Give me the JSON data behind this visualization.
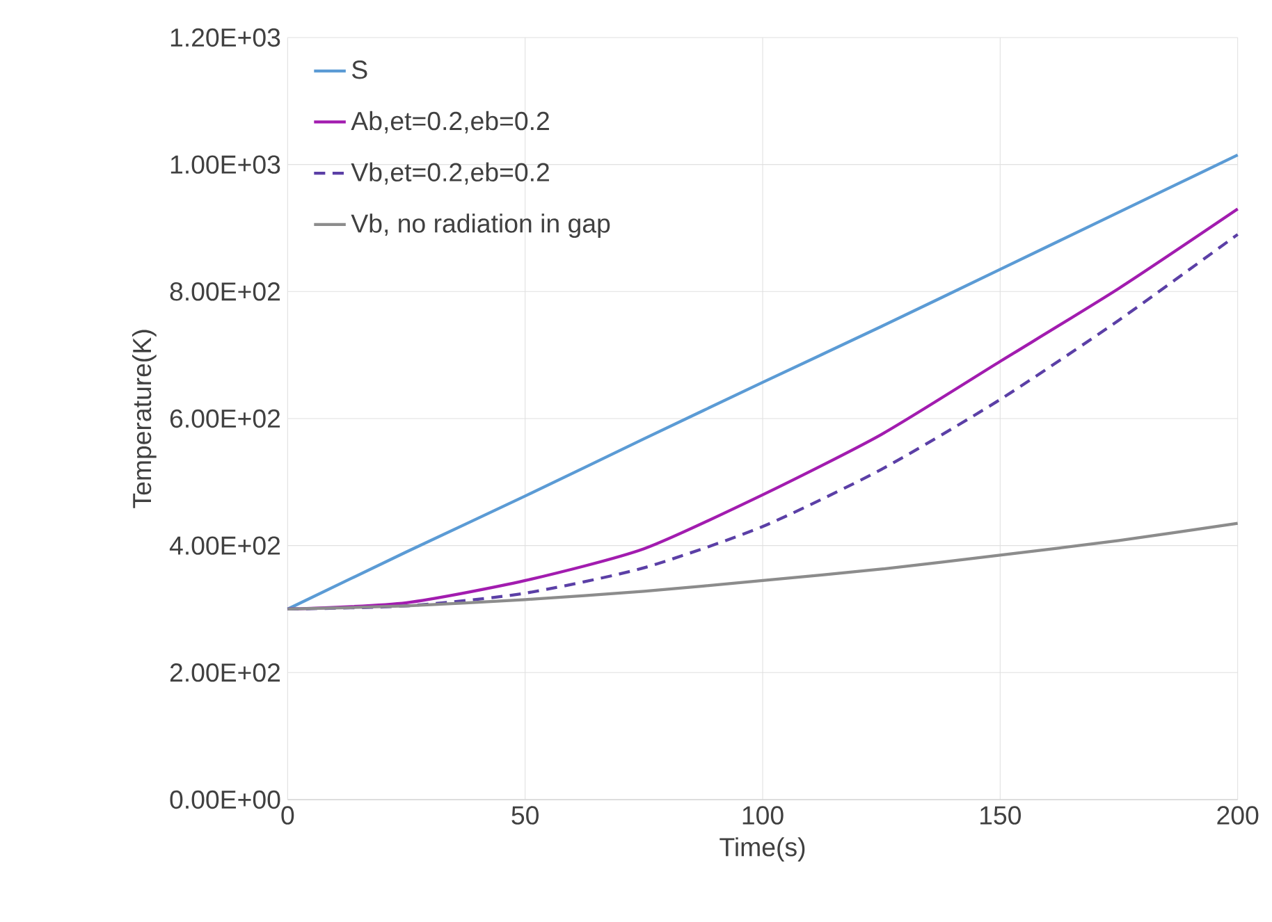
{
  "chart_data": {
    "type": "line",
    "xlabel": "Time(s)",
    "ylabel": "Temperature(K)",
    "x": [
      0,
      25,
      50,
      75,
      100,
      125,
      150,
      175,
      200
    ],
    "series": [
      {
        "name": "S",
        "color": "#5b9bd5",
        "line_style": "solid",
        "values": [
          300,
          390,
          478,
          568,
          657,
          745,
          835,
          925,
          1015
        ]
      },
      {
        "name": "Ab,et=0.2,eb=0.2",
        "color": "#a21caf",
        "line_style": "solid",
        "values": [
          300,
          310,
          345,
          395,
          480,
          575,
          690,
          805,
          930
        ]
      },
      {
        "name": "Vb,et=0.2,eb=0.2",
        "color": "#5b3fa6",
        "line_style": "dashed",
        "values": [
          300,
          305,
          325,
          365,
          430,
          520,
          630,
          755,
          890
        ]
      },
      {
        "name": "Vb, no radiation in gap",
        "color": "#8c8c8c",
        "line_style": "solid",
        "values": [
          300,
          305,
          315,
          328,
          345,
          363,
          385,
          408,
          435
        ]
      }
    ],
    "xlim": [
      0,
      200
    ],
    "xticks": [
      0,
      50,
      100,
      150,
      200
    ],
    "ylim": [
      0,
      1200
    ],
    "yticks": [
      {
        "value": 0,
        "label": "0.00E+00"
      },
      {
        "value": 200,
        "label": "2.00E+02"
      },
      {
        "value": 400,
        "label": "4.00E+02"
      },
      {
        "value": 600,
        "label": "6.00E+02"
      },
      {
        "value": 800,
        "label": "8.00E+02"
      },
      {
        "value": 1000,
        "label": "1.00E+03"
      },
      {
        "value": 1200,
        "label": "1.20E+03"
      }
    ],
    "grid": true,
    "legend": "top left",
    "marker": "none"
  }
}
